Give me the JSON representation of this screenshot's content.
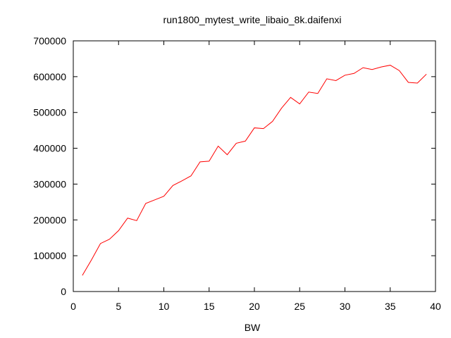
{
  "chart_data": {
    "type": "line",
    "title": "run1800_mytest_write_libaio_8k.daifenxi",
    "xlabel": "BW",
    "ylabel": "",
    "xlim": [
      0,
      40
    ],
    "ylim": [
      0,
      700000
    ],
    "x_ticks": [
      0,
      5,
      10,
      15,
      20,
      25,
      30,
      35,
      40
    ],
    "y_ticks": [
      0,
      100000,
      200000,
      300000,
      400000,
      500000,
      600000,
      700000
    ],
    "grid": false,
    "legend": "none",
    "line_color": "#ff0000",
    "series": [
      {
        "x": [
          1,
          2,
          3,
          4,
          5,
          6,
          7,
          8,
          9,
          10,
          11,
          12,
          13,
          14,
          15,
          16,
          17,
          18,
          19,
          20,
          21,
          22,
          23,
          24,
          25,
          26,
          27,
          28,
          29,
          30,
          31,
          32,
          33,
          34,
          35,
          36,
          37,
          38,
          39
        ],
        "values": [
          45000,
          88000,
          134000,
          146000,
          170000,
          205000,
          198000,
          246000,
          256000,
          266000,
          296000,
          309000,
          323000,
          362000,
          364000,
          406000,
          382000,
          414000,
          420000,
          457000,
          455000,
          475000,
          512000,
          542000,
          524000,
          557000,
          553000,
          594000,
          589000,
          604000,
          609000,
          625000,
          620000,
          627000,
          632000,
          617000,
          584000,
          582000,
          607000
        ]
      }
    ]
  }
}
